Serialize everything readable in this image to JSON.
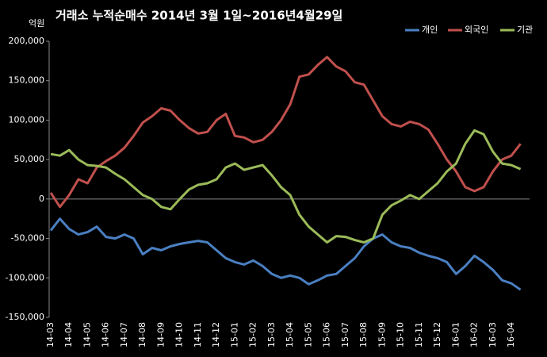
{
  "chart_data": {
    "type": "line",
    "title": "거래소 누적순매수 2014년 3월 1일~2016년4월29일",
    "y_unit": "억원",
    "categories": [
      "14-03",
      null,
      "14-04",
      null,
      "14-05",
      null,
      "14-06",
      null,
      "14-07",
      null,
      "14-08",
      null,
      "14-09",
      null,
      "14-10",
      null,
      "14-11",
      null,
      "14-12",
      null,
      "15-01",
      null,
      "15-02",
      null,
      "15-03",
      null,
      "15-04",
      null,
      "15-05",
      null,
      "15-06",
      null,
      "15-07",
      null,
      "15-08",
      null,
      "15-09",
      null,
      "15-10",
      null,
      "15-11",
      null,
      "15-12",
      null,
      "16-01",
      null,
      "16-02",
      null,
      "16-03",
      null,
      "16-04",
      null
    ],
    "series": [
      {
        "name": "개인",
        "color": "#4a7fc1",
        "values": [
          -40000,
          -25000,
          -38000,
          -45000,
          -42000,
          -35000,
          -48000,
          -50000,
          -45000,
          -50000,
          -70000,
          -62000,
          -65000,
          -60000,
          -57000,
          -55000,
          -53000,
          -55000,
          -65000,
          -75000,
          -80000,
          -83000,
          -78000,
          -85000,
          -95000,
          -100000,
          -97000,
          -100000,
          -108000,
          -103000,
          -97000,
          -95000,
          -85000,
          -75000,
          -60000,
          -50000,
          -45000,
          -55000,
          -60000,
          -62000,
          -68000,
          -72000,
          -75000,
          -80000,
          -95000,
          -85000,
          -72000,
          -80000,
          -90000,
          -103000,
          -107000,
          -115000
        ]
      },
      {
        "name": "외국인",
        "color": "#c0504d",
        "values": [
          8000,
          -10000,
          5000,
          25000,
          20000,
          40000,
          48000,
          55000,
          65000,
          80000,
          97000,
          105000,
          115000,
          112000,
          100000,
          90000,
          83000,
          85000,
          100000,
          108000,
          80000,
          78000,
          72000,
          75000,
          85000,
          100000,
          120000,
          155000,
          158000,
          170000,
          180000,
          168000,
          162000,
          148000,
          145000,
          125000,
          105000,
          95000,
          92000,
          98000,
          95000,
          88000,
          70000,
          50000,
          35000,
          15000,
          10000,
          15000,
          35000,
          50000,
          55000,
          70000
        ]
      },
      {
        "name": "기관",
        "color": "#9bbb59",
        "values": [
          57000,
          55000,
          62000,
          50000,
          43000,
          42000,
          40000,
          32000,
          25000,
          15000,
          5000,
          0,
          -10000,
          -13000,
          0,
          12000,
          18000,
          20000,
          25000,
          40000,
          45000,
          37000,
          40000,
          43000,
          30000,
          15000,
          5000,
          -20000,
          -35000,
          -45000,
          -55000,
          -47000,
          -48000,
          -52000,
          -55000,
          -50000,
          -20000,
          -8000,
          -2000,
          5000,
          0,
          10000,
          20000,
          35000,
          45000,
          70000,
          87000,
          82000,
          60000,
          45000,
          43000,
          38000
        ]
      }
    ],
    "ylim": [
      -150000,
      200000
    ],
    "yticks": [
      {
        "value": -150000,
        "label": "-150,000"
      },
      {
        "value": -100000,
        "label": "-100,000"
      },
      {
        "value": -50000,
        "label": "-50,000"
      },
      0,
      {
        "value": 50000,
        "label": "50,000"
      },
      {
        "value": 100000,
        "label": "100,000"
      },
      {
        "value": 150000,
        "label": "150,000"
      },
      {
        "value": 200000,
        "label": "200,000"
      }
    ],
    "grid": false,
    "legend": "top-right"
  }
}
